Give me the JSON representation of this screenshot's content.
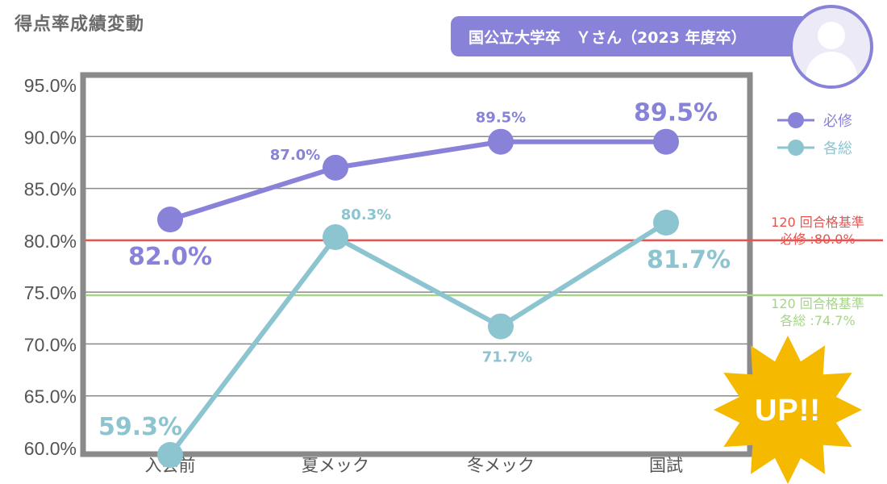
{
  "header": {
    "title": "得点率成績変動",
    "profile_label": "国公立大学卒　Ｙさん（2023 年度卒）"
  },
  "chart_data": {
    "type": "line",
    "categories": [
      "入会前",
      "夏メック",
      "冬メック",
      "国試"
    ],
    "series": [
      {
        "name": "必修",
        "values": [
          82.0,
          87.0,
          89.5,
          89.5
        ],
        "color": "#8882d8",
        "labels": [
          "82.0%",
          "87.0%",
          "89.5%",
          "89.5%"
        ]
      },
      {
        "name": "各総",
        "values": [
          59.3,
          80.3,
          71.7,
          81.7
        ],
        "color": "#8cc4d0",
        "labels": [
          "59.3%",
          "80.3%",
          "71.7%",
          "81.7%"
        ]
      }
    ],
    "ylim": [
      60,
      95
    ],
    "yticks": [
      "60.0%",
      "65.0%",
      "70.0%",
      "75.0%",
      "80.0%",
      "85.0%",
      "90.0%",
      "95.0%"
    ],
    "yticks_values": [
      60,
      65,
      70,
      75,
      80,
      85,
      90,
      95
    ],
    "reference_lines": [
      {
        "value": 80.0,
        "color": "#e8524f",
        "line1": "120 回合格基準",
        "line2": "必修 :80.0%"
      },
      {
        "value": 74.7,
        "color": "#a8d48a",
        "line1": "120 回合格基準",
        "line2": "各総 :74.7%"
      }
    ],
    "legend": {
      "position": "right"
    }
  },
  "badge": {
    "text": "UP!!",
    "color": "#f5b900"
  }
}
